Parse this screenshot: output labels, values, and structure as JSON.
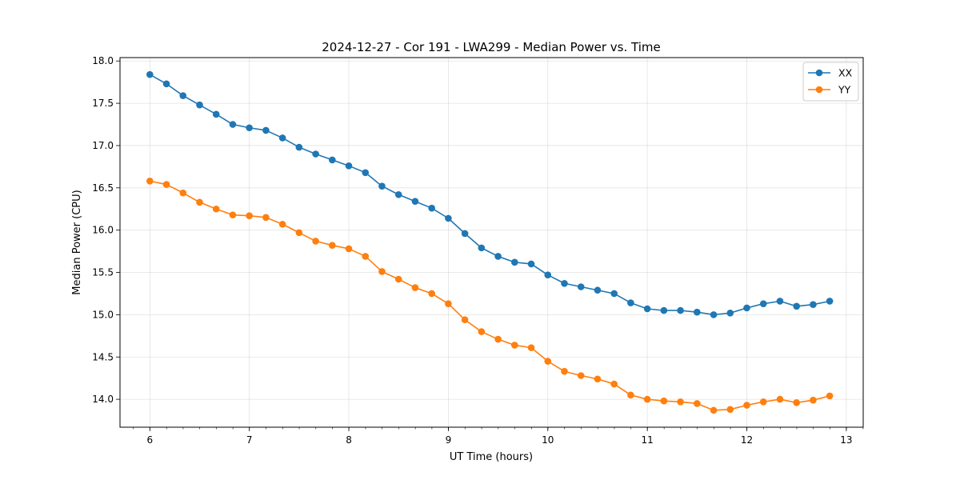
{
  "chart_data": {
    "type": "line",
    "title": "2024-12-27 - Cor 191 - LWA299 - Median Power vs. Time",
    "xlabel": "UT Time (hours)",
    "ylabel": "Median Power (CPU)",
    "xlim": [
      5.7,
      13.17
    ],
    "ylim": [
      13.67,
      18.04
    ],
    "xticks": [
      "6",
      "7",
      "8",
      "9",
      "10",
      "11",
      "12",
      "13"
    ],
    "yticks": [
      "14.0",
      "14.5",
      "15.0",
      "15.5",
      "16.0",
      "16.5",
      "17.0",
      "17.5",
      "18.0"
    ],
    "x_minor_step": 0.1667,
    "grid": true,
    "legend_position": "top-right",
    "x": [
      6.0,
      6.1667,
      6.3333,
      6.5,
      6.6667,
      6.8333,
      7.0,
      7.1667,
      7.3333,
      7.5,
      7.6667,
      7.8333,
      8.0,
      8.1667,
      8.3333,
      8.5,
      8.6667,
      8.8333,
      9.0,
      9.1667,
      9.3333,
      9.5,
      9.6667,
      9.8333,
      10.0,
      10.1667,
      10.3333,
      10.5,
      10.6667,
      10.8333,
      11.0,
      11.1667,
      11.3333,
      11.5,
      11.6667,
      11.8333,
      12.0,
      12.1667,
      12.3333,
      12.5,
      12.6667,
      12.8333
    ],
    "series": [
      {
        "name": "XX",
        "color": "#1f77b4",
        "values": [
          17.84,
          17.73,
          17.59,
          17.48,
          17.37,
          17.25,
          17.21,
          17.18,
          17.09,
          16.98,
          16.9,
          16.83,
          16.76,
          16.68,
          16.52,
          16.42,
          16.34,
          16.26,
          16.14,
          15.96,
          15.79,
          15.69,
          15.62,
          15.6,
          15.47,
          15.37,
          15.33,
          15.29,
          15.25,
          15.14,
          15.07,
          15.05,
          15.05,
          15.03,
          15.0,
          15.02,
          15.08,
          15.13,
          15.16,
          15.1,
          15.12,
          15.16
        ]
      },
      {
        "name": "YY",
        "color": "#ff7f0e",
        "values": [
          16.58,
          16.54,
          16.44,
          16.33,
          16.25,
          16.18,
          16.17,
          16.15,
          16.07,
          15.97,
          15.87,
          15.82,
          15.78,
          15.69,
          15.51,
          15.42,
          15.32,
          15.25,
          15.13,
          14.94,
          14.8,
          14.71,
          14.64,
          14.61,
          14.45,
          14.33,
          14.28,
          14.24,
          14.18,
          14.05,
          14.0,
          13.98,
          13.97,
          13.95,
          13.87,
          13.88,
          13.93,
          13.97,
          14.0,
          13.96,
          13.99,
          14.04
        ]
      }
    ]
  }
}
